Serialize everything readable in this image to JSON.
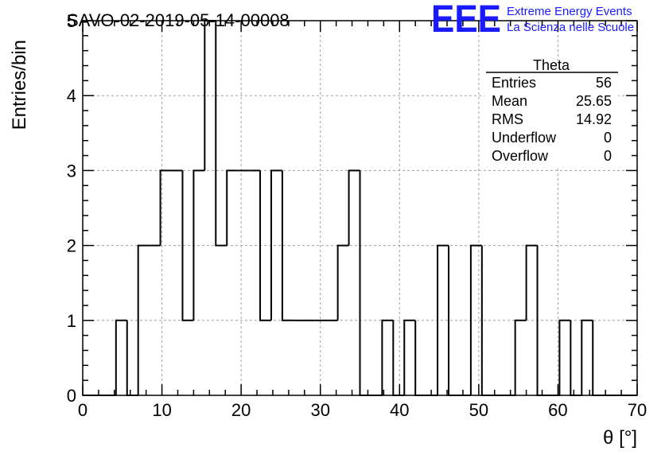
{
  "chart_data": {
    "type": "histogram",
    "title": "SAVO-02-2019-05-14-00008",
    "xlabel": "θ [°]",
    "ylabel": "Entries/bin",
    "xlim": [
      0,
      70
    ],
    "ylim": [
      0,
      5
    ],
    "grid": true,
    "x_ticks": [
      "0",
      "10",
      "20",
      "30",
      "40",
      "50",
      "60",
      "70"
    ],
    "y_ticks": [
      "0",
      "1",
      "2",
      "3",
      "4",
      "5"
    ],
    "bin_width": 1.4,
    "bins": [
      {
        "lo": 0.0,
        "count": 0
      },
      {
        "lo": 1.4,
        "count": 0
      },
      {
        "lo": 2.8,
        "count": 0
      },
      {
        "lo": 4.2,
        "count": 1
      },
      {
        "lo": 5.6,
        "count": 0
      },
      {
        "lo": 7.0,
        "count": 2
      },
      {
        "lo": 8.4,
        "count": 2
      },
      {
        "lo": 9.8,
        "count": 3
      },
      {
        "lo": 11.2,
        "count": 3
      },
      {
        "lo": 12.6,
        "count": 1
      },
      {
        "lo": 14.0,
        "count": 3
      },
      {
        "lo": 15.4,
        "count": 5
      },
      {
        "lo": 16.8,
        "count": 2
      },
      {
        "lo": 18.2,
        "count": 3
      },
      {
        "lo": 19.6,
        "count": 3
      },
      {
        "lo": 21.0,
        "count": 3
      },
      {
        "lo": 22.4,
        "count": 1
      },
      {
        "lo": 23.8,
        "count": 3
      },
      {
        "lo": 25.2,
        "count": 1
      },
      {
        "lo": 26.6,
        "count": 1
      },
      {
        "lo": 28.0,
        "count": 1
      },
      {
        "lo": 29.4,
        "count": 1
      },
      {
        "lo": 30.8,
        "count": 1
      },
      {
        "lo": 32.2,
        "count": 2
      },
      {
        "lo": 33.6,
        "count": 3
      },
      {
        "lo": 35.0,
        "count": 0
      },
      {
        "lo": 36.4,
        "count": 0
      },
      {
        "lo": 37.8,
        "count": 1
      },
      {
        "lo": 39.2,
        "count": 0
      },
      {
        "lo": 40.6,
        "count": 1
      },
      {
        "lo": 42.0,
        "count": 0
      },
      {
        "lo": 43.4,
        "count": 0
      },
      {
        "lo": 44.8,
        "count": 2
      },
      {
        "lo": 46.2,
        "count": 0
      },
      {
        "lo": 47.6,
        "count": 0
      },
      {
        "lo": 49.0,
        "count": 2
      },
      {
        "lo": 50.4,
        "count": 0
      },
      {
        "lo": 51.8,
        "count": 0
      },
      {
        "lo": 53.2,
        "count": 0
      },
      {
        "lo": 54.6,
        "count": 1
      },
      {
        "lo": 56.0,
        "count": 2
      },
      {
        "lo": 57.4,
        "count": 0
      },
      {
        "lo": 58.8,
        "count": 0
      },
      {
        "lo": 60.2,
        "count": 1
      },
      {
        "lo": 61.6,
        "count": 0
      },
      {
        "lo": 63.0,
        "count": 1
      },
      {
        "lo": 64.4,
        "count": 0
      },
      {
        "lo": 65.8,
        "count": 0
      },
      {
        "lo": 67.2,
        "count": 0
      },
      {
        "lo": 68.6,
        "count": 0
      }
    ],
    "stats": {
      "name": "Theta",
      "rows": [
        {
          "label": "Entries",
          "value": "56"
        },
        {
          "label": "Mean",
          "value": "25.65"
        },
        {
          "label": "RMS",
          "value": "14.92"
        },
        {
          "label": "Underflow",
          "value": "0"
        },
        {
          "label": "Overflow",
          "value": "0"
        }
      ]
    }
  },
  "logo": {
    "mark": "EEE",
    "line1": "Extreme Energy Events",
    "line2": "La Scienza nelle Scuole",
    "color": "#1a1aff"
  },
  "colors": {
    "line": "#000000",
    "grid": "#a0a0a0"
  }
}
